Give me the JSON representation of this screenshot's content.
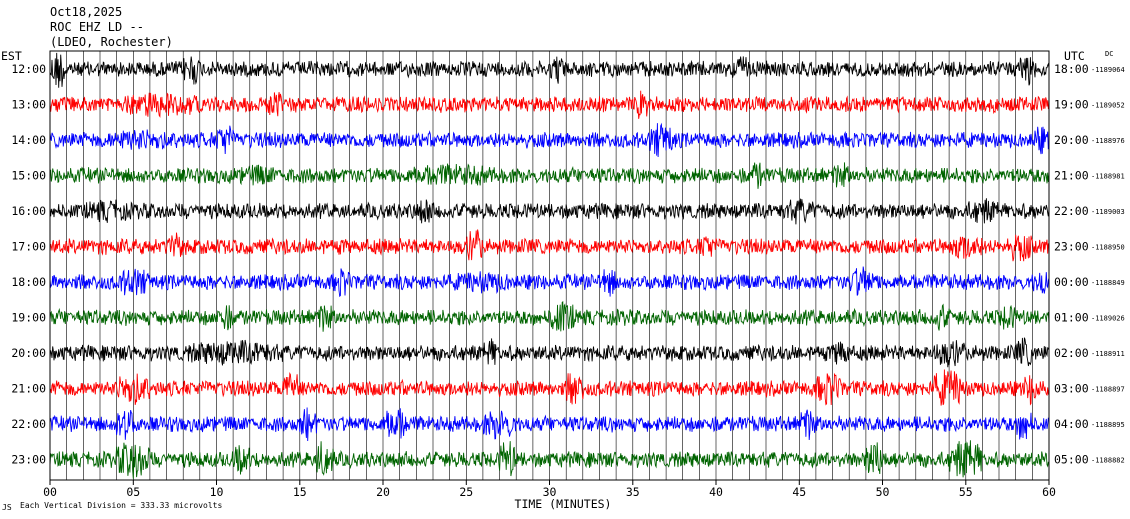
{
  "header": {
    "date": "Oct18,2025",
    "station": "ROC EHZ LD --",
    "network": "(LDEO, Rochester)"
  },
  "left_zone": "EST",
  "right_zone": "UTC",
  "dc_label": "DC",
  "footer": {
    "logo_mark": "JS",
    "scale_text": "Each Vertical Division =  333.33 microvolts"
  },
  "chart_data": {
    "type": "line",
    "title": "",
    "xlabel": "TIME (MINUTES)",
    "ylabel": "",
    "xlim": [
      0,
      60
    ],
    "x_ticks": [
      0,
      5,
      10,
      15,
      20,
      25,
      30,
      35,
      40,
      45,
      50,
      55,
      60
    ],
    "x_tick_labels": [
      "00",
      "05",
      "10",
      "15",
      "20",
      "25",
      "30",
      "35",
      "40",
      "45",
      "50",
      "55",
      "60"
    ],
    "grid": "vertical lines every minute",
    "colors": [
      "#000000",
      "#ff0000",
      "#0000ff",
      "#006400"
    ],
    "rows": [
      {
        "est": "12:00",
        "utc": "18:00",
        "dc": "-1189064",
        "color": "#000000",
        "activity": [
          [
            0,
            1,
            3.0
          ],
          [
            8,
            9,
            2.5
          ],
          [
            30,
            31,
            2.0
          ],
          [
            41,
            42,
            2.0
          ],
          [
            58,
            59.5,
            2.5
          ]
        ]
      },
      {
        "est": "13:00",
        "utc": "19:00",
        "dc": "-1189052",
        "color": "#ff0000",
        "activity": [
          [
            4,
            9,
            1.8
          ],
          [
            13,
            14,
            2.0
          ],
          [
            35,
            36,
            2.0
          ]
        ]
      },
      {
        "est": "14:00",
        "utc": "20:00",
        "dc": "-1188976",
        "color": "#0000ff",
        "activity": [
          [
            3,
            8,
            1.6
          ],
          [
            10,
            11,
            2.5
          ],
          [
            36,
            37.5,
            2.5
          ],
          [
            59,
            60,
            2.0
          ]
        ]
      },
      {
        "est": "15:00",
        "utc": "21:00",
        "dc": "-1188981",
        "color": "#006400",
        "activity": [
          [
            11,
            14,
            1.5
          ],
          [
            21,
            27,
            1.6
          ],
          [
            42,
            43,
            2.0
          ],
          [
            47,
            48,
            2.0
          ]
        ]
      },
      {
        "est": "16:00",
        "utc": "22:00",
        "dc": "-1189003",
        "color": "#000000",
        "activity": [
          [
            2,
            5,
            1.6
          ],
          [
            22,
            23,
            2.0
          ],
          [
            44,
            46,
            1.8
          ],
          [
            55,
            57,
            1.8
          ]
        ]
      },
      {
        "est": "17:00",
        "utc": "23:00",
        "dc": "-1188950",
        "color": "#ff0000",
        "activity": [
          [
            7,
            8,
            2.0
          ],
          [
            25,
            26,
            2.5
          ],
          [
            39,
            40,
            2.0
          ],
          [
            54,
            56,
            2.0
          ],
          [
            57.5,
            59,
            2.2
          ]
        ]
      },
      {
        "est": "18:00",
        "utc": "00:00",
        "dc": "-1188849",
        "color": "#0000ff",
        "activity": [
          [
            4,
            6,
            2.0
          ],
          [
            17,
            18,
            2.2
          ],
          [
            24,
            28,
            1.6
          ],
          [
            33,
            34,
            2.2
          ],
          [
            48,
            49.5,
            2.2
          ],
          [
            59,
            60,
            2.0
          ]
        ]
      },
      {
        "est": "19:00",
        "utc": "01:00",
        "dc": "-1189026",
        "color": "#006400",
        "activity": [
          [
            10,
            11,
            2.0
          ],
          [
            16,
            17,
            2.2
          ],
          [
            30,
            31.5,
            2.5
          ],
          [
            53,
            54,
            2.0
          ],
          [
            57,
            58,
            2.0
          ]
        ]
      },
      {
        "est": "20:00",
        "utc": "02:00",
        "dc": "-1188911",
        "color": "#000000",
        "activity": [
          [
            8,
            14,
            1.8
          ],
          [
            26,
            27,
            2.0
          ],
          [
            47,
            48,
            2.2
          ],
          [
            53,
            55,
            2.0
          ],
          [
            58,
            59,
            2.2
          ]
        ]
      },
      {
        "est": "21:00",
        "utc": "03:00",
        "dc": "-1188897",
        "color": "#ff0000",
        "activity": [
          [
            4,
            6,
            2.5
          ],
          [
            14,
            15,
            2.5
          ],
          [
            31,
            32,
            2.8
          ],
          [
            46,
            47.5,
            2.5
          ],
          [
            53,
            55,
            2.8
          ],
          [
            58.5,
            59.5,
            2.5
          ]
        ]
      },
      {
        "est": "22:00",
        "utc": "04:00",
        "dc": "-1188895",
        "color": "#0000ff",
        "activity": [
          [
            4,
            5,
            2.8
          ],
          [
            15,
            16,
            2.5
          ],
          [
            20,
            21.5,
            2.5
          ],
          [
            26,
            28,
            2.2
          ],
          [
            45,
            46,
            2.5
          ],
          [
            58,
            59,
            2.5
          ]
        ]
      },
      {
        "est": "23:00",
        "utc": "05:00",
        "dc": "-1188882",
        "color": "#006400",
        "activity": [
          [
            4,
            6,
            2.8
          ],
          [
            11,
            12,
            2.5
          ],
          [
            16,
            17,
            3.0
          ],
          [
            27,
            28,
            2.8
          ],
          [
            49,
            50,
            3.0
          ],
          [
            54,
            56,
            2.8
          ]
        ]
      }
    ]
  }
}
